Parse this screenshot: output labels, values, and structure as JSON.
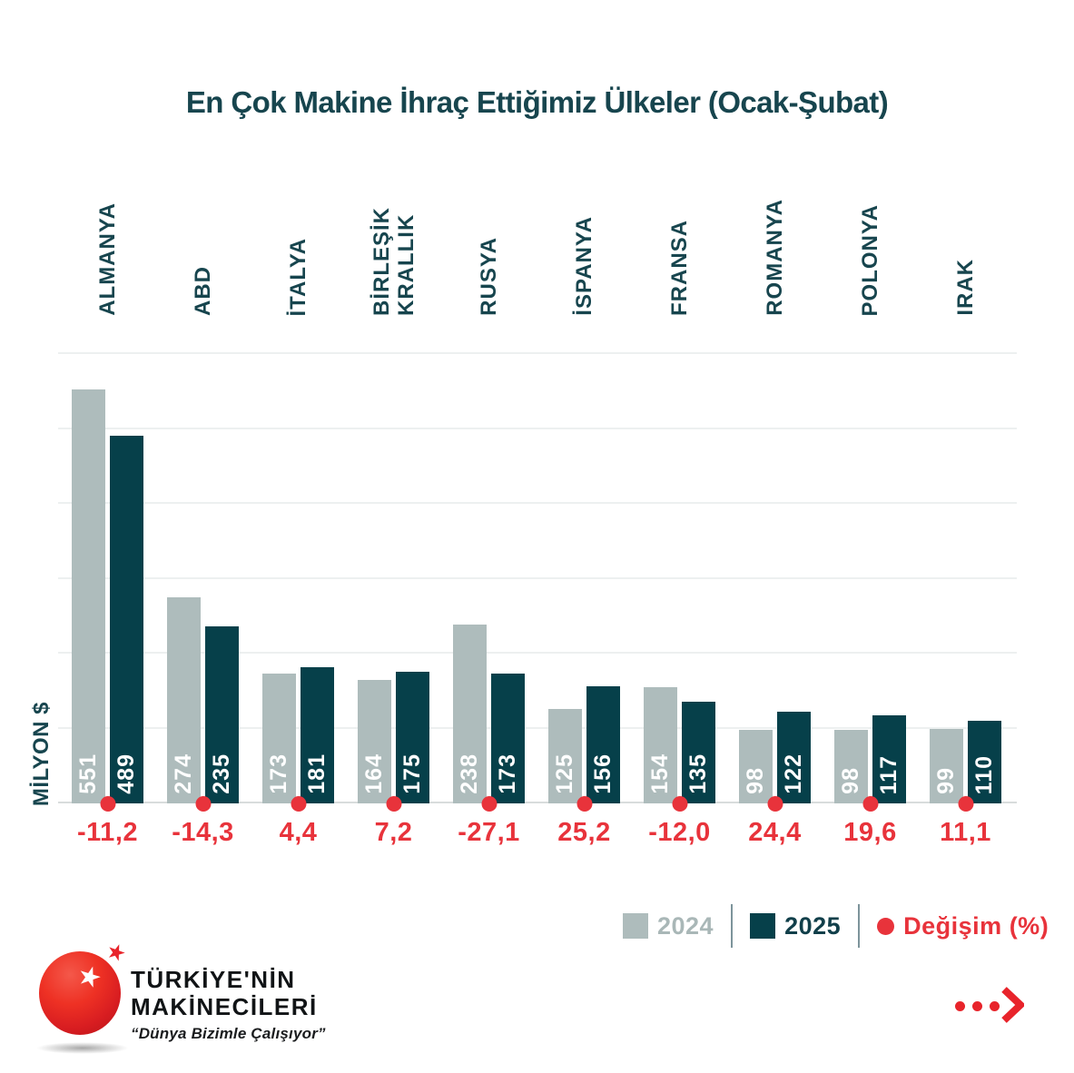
{
  "title": "En Çok Makine İhraç Ettiğimiz Ülkeler (Ocak-Şubat)",
  "y_axis_label": "MİLYON $",
  "legend": {
    "label_2024": "2024",
    "label_2025": "2025",
    "label_change": "Değişim (%)"
  },
  "colors": {
    "teal_dark": "#17454e",
    "bar_2024": "#aebcbc",
    "bar_2025": "#06404a",
    "red": "#e8333b",
    "grid": "#edf0f0",
    "axis_line": "#d8dcdc",
    "logo_red": "#e8242b"
  },
  "chart_data": {
    "type": "bar",
    "title": "En Çok Makine İhraç Ettiğimiz Ülkeler (Ocak-Şubat)",
    "ylabel": "MİLYON $",
    "ylim": [
      0,
      600
    ],
    "gridline_step": 100,
    "grid": true,
    "legend_position": "bottom-right",
    "categories": [
      "ALMANYA",
      "ABD",
      "İTALYA",
      "BİRLEŞİK\nKRALLIK",
      "RUSYA",
      "İSPANYA",
      "FRANSA",
      "ROMANYA",
      "POLONYA",
      "IRAK"
    ],
    "series": [
      {
        "name": "2024",
        "values": [
          551,
          274,
          173,
          164,
          238,
          125,
          154,
          98,
          98,
          99
        ]
      },
      {
        "name": "2025",
        "values": [
          489,
          235,
          181,
          175,
          173,
          156,
          135,
          122,
          117,
          110
        ]
      }
    ],
    "change_pct_labels": [
      "-11,2",
      "-14,3",
      "4,4",
      "7,2",
      "-27,1",
      "25,2",
      "-12,0",
      "24,4",
      "19,6",
      "11,1"
    ]
  },
  "logo": {
    "line1": "TÜRKİYE'NİN",
    "line2": "MAKİNECİLERİ",
    "tagline": "“Dünya Bizimle Çalışıyor”",
    "star_glyph": "★"
  }
}
